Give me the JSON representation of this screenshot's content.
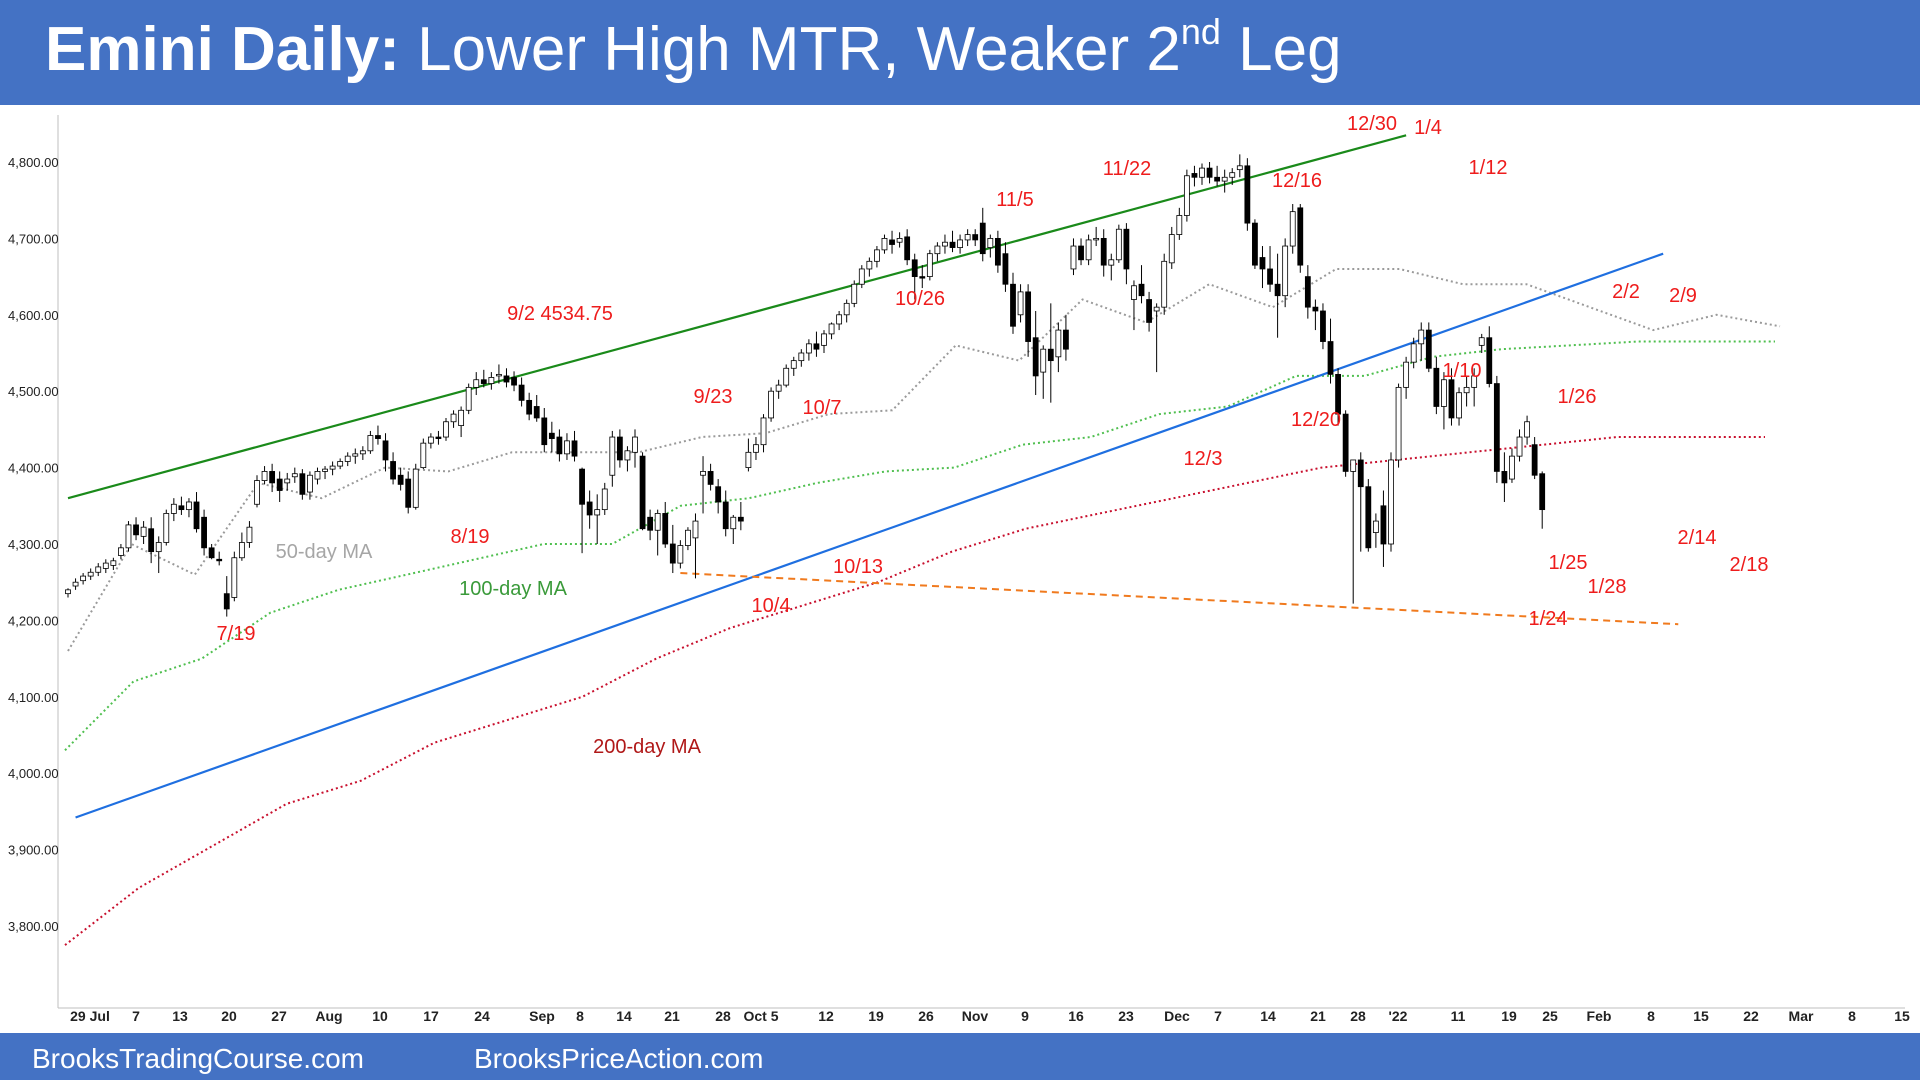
{
  "header": {
    "title_bold": "Emini Daily:",
    "title_main": " Lower High MTR, Weaker 2",
    "title_sup": "nd",
    "title_tail": " Leg"
  },
  "footer": {
    "left": "BrooksTradingCourse.com",
    "right": "BrooksPriceAction.com"
  },
  "colors": {
    "banner": "#4472c4",
    "upper_trendline": "#1a8a1a",
    "lower_trendline": "#1f6fe0",
    "support_line": "#f07a1e",
    "ma50": "#9a9a9a",
    "ma100": "#4fbf4f",
    "ma200": "#c8102e",
    "label_red": "#ee1c1c"
  },
  "chart_data": {
    "type": "candlestick",
    "ylim": [
      3750,
      4850
    ],
    "y_ticks": [
      "3,800.00",
      "3,900.00",
      "4,000.00",
      "4,100.00",
      "4,200.00",
      "4,300.00",
      "4,400.00",
      "4,500.00",
      "4,600.00",
      "4,700.00",
      "4,800.00"
    ],
    "x_ticks": [
      "29 Jul",
      "7",
      "13",
      "20",
      "27",
      "Aug",
      "10",
      "17",
      "24",
      "Sep",
      "8",
      "14",
      "21",
      "28",
      "Oct 5",
      "12",
      "19",
      "26",
      "Nov",
      "9",
      "16",
      "23",
      "Dec",
      "7",
      "14",
      "21",
      "28",
      "'22",
      "11",
      "19",
      "25",
      "Feb",
      "8",
      "15",
      "22",
      "Mar",
      "8",
      "15"
    ],
    "candles": [
      [
        4235,
        4242,
        4230,
        4240
      ],
      [
        4245,
        4255,
        4240,
        4250
      ],
      [
        4252,
        4262,
        4247,
        4258
      ],
      [
        4258,
        4268,
        4253,
        4263
      ],
      [
        4263,
        4275,
        4258,
        4270
      ],
      [
        4268,
        4280,
        4262,
        4275
      ],
      [
        4272,
        4282,
        4266,
        4278
      ],
      [
        4285,
        4300,
        4280,
        4295
      ],
      [
        4295,
        4330,
        4290,
        4325
      ],
      [
        4325,
        4335,
        4305,
        4312
      ],
      [
        4310,
        4330,
        4300,
        4322
      ],
      [
        4320,
        4335,
        4275,
        4290
      ],
      [
        4290,
        4310,
        4262,
        4302
      ],
      [
        4302,
        4345,
        4298,
        4340
      ],
      [
        4340,
        4360,
        4330,
        4352
      ],
      [
        4350,
        4362,
        4338,
        4345
      ],
      [
        4345,
        4360,
        4335,
        4355
      ],
      [
        4355,
        4368,
        4315,
        4320
      ],
      [
        4335,
        4345,
        4285,
        4295
      ],
      [
        4295,
        4300,
        4280,
        4282
      ],
      [
        4280,
        4290,
        4272,
        4278
      ],
      [
        4235,
        4258,
        4205,
        4215
      ],
      [
        4230,
        4290,
        4225,
        4282
      ],
      [
        4282,
        4315,
        4278,
        4302
      ],
      [
        4302,
        4330,
        4295,
        4322
      ],
      [
        4352,
        4390,
        4348,
        4383
      ],
      [
        4383,
        4402,
        4378,
        4395
      ],
      [
        4395,
        4405,
        4368,
        4380
      ],
      [
        4385,
        4395,
        4355,
        4370
      ],
      [
        4380,
        4393,
        4370,
        4385
      ],
      [
        4388,
        4400,
        4380,
        4392
      ],
      [
        4392,
        4398,
        4358,
        4365
      ],
      [
        4368,
        4395,
        4358,
        4390
      ],
      [
        4385,
        4400,
        4378,
        4395
      ],
      [
        4395,
        4402,
        4385,
        4398
      ],
      [
        4398,
        4408,
        4390,
        4402
      ],
      [
        4402,
        4412,
        4398,
        4408
      ],
      [
        4408,
        4420,
        4402,
        4415
      ],
      [
        4415,
        4425,
        4405,
        4418
      ],
      [
        4418,
        4428,
        4410,
        4422
      ],
      [
        4422,
        4448,
        4418,
        4442
      ],
      [
        4442,
        4455,
        4430,
        4438
      ],
      [
        4435,
        4445,
        4395,
        4410
      ],
      [
        4408,
        4420,
        4378,
        4385
      ],
      [
        4390,
        4400,
        4370,
        4378
      ],
      [
        4385,
        4395,
        4340,
        4348
      ],
      [
        4348,
        4405,
        4345,
        4398
      ],
      [
        4400,
        4438,
        4398,
        4432
      ],
      [
        4432,
        4445,
        4425,
        4440
      ],
      [
        4440,
        4448,
        4430,
        4438
      ],
      [
        4440,
        4465,
        4435,
        4460
      ],
      [
        4460,
        4475,
        4452,
        4470
      ],
      [
        4455,
        4480,
        4440,
        4475
      ],
      [
        4475,
        4510,
        4470,
        4505
      ],
      [
        4505,
        4525,
        4495,
        4515
      ],
      [
        4515,
        4528,
        4505,
        4510
      ],
      [
        4510,
        4525,
        4502,
        4518
      ],
      [
        4520,
        4535,
        4510,
        4522
      ],
      [
        4520,
        4530,
        4505,
        4512
      ],
      [
        4518,
        4526,
        4500,
        4508
      ],
      [
        4508,
        4518,
        4480,
        4488
      ],
      [
        4488,
        4498,
        4462,
        4470
      ],
      [
        4480,
        4495,
        4460,
        4465
      ],
      [
        4465,
        4478,
        4420,
        4430
      ],
      [
        4445,
        4460,
        4420,
        4438
      ],
      [
        4440,
        4450,
        4408,
        4418
      ],
      [
        4418,
        4445,
        4410,
        4435
      ],
      [
        4435,
        4448,
        4408,
        4415
      ],
      [
        4398,
        4400,
        4288,
        4352
      ],
      [
        4355,
        4370,
        4320,
        4338
      ],
      [
        4338,
        4365,
        4300,
        4345
      ],
      [
        4345,
        4380,
        4338,
        4372
      ],
      [
        4390,
        4448,
        4375,
        4440
      ],
      [
        4440,
        4450,
        4400,
        4410
      ],
      [
        4410,
        4428,
        4395,
        4422
      ],
      [
        4420,
        4450,
        4400,
        4440
      ],
      [
        4415,
        4420,
        4318,
        4320
      ],
      [
        4335,
        4345,
        4305,
        4318
      ],
      [
        4318,
        4345,
        4285,
        4340
      ],
      [
        4340,
        4355,
        4295,
        4300
      ],
      [
        4300,
        4325,
        4262,
        4275
      ],
      [
        4275,
        4305,
        4268,
        4298
      ],
      [
        4298,
        4322,
        4292,
        4318
      ],
      [
        4308,
        4340,
        4255,
        4330
      ],
      [
        4390,
        4415,
        4340,
        4395
      ],
      [
        4395,
        4405,
        4370,
        4378
      ],
      [
        4375,
        4385,
        4340,
        4355
      ],
      [
        4355,
        4370,
        4310,
        4320
      ],
      [
        4320,
        4338,
        4300,
        4335
      ],
      [
        4335,
        4355,
        4318,
        4330
      ],
      [
        4400,
        4438,
        4395,
        4420
      ],
      [
        4420,
        4440,
        4410,
        4430
      ],
      [
        4430,
        4470,
        4420,
        4465
      ],
      [
        4465,
        4505,
        4460,
        4500
      ],
      [
        4500,
        4515,
        4490,
        4508
      ],
      [
        4508,
        4535,
        4505,
        4530
      ],
      [
        4530,
        4545,
        4520,
        4540
      ],
      [
        4540,
        4555,
        4532,
        4550
      ],
      [
        4550,
        4568,
        4540,
        4562
      ],
      [
        4562,
        4578,
        4545,
        4555
      ],
      [
        4560,
        4580,
        4550,
        4575
      ],
      [
        4575,
        4590,
        4568,
        4588
      ],
      [
        4588,
        4605,
        4580,
        4600
      ],
      [
        4600,
        4620,
        4590,
        4615
      ],
      [
        4615,
        4645,
        4610,
        4640
      ],
      [
        4640,
        4665,
        4635,
        4660
      ],
      [
        4660,
        4675,
        4650,
        4670
      ],
      [
        4670,
        4690,
        4662,
        4685
      ],
      [
        4685,
        4705,
        4680,
        4700
      ],
      [
        4698,
        4710,
        4680,
        4692
      ],
      [
        4695,
        4708,
        4688,
        4700
      ],
      [
        4702,
        4712,
        4665,
        4672
      ],
      [
        4672,
        4680,
        4620,
        4650
      ],
      [
        4650,
        4665,
        4635,
        4648
      ],
      [
        4650,
        4685,
        4645,
        4680
      ],
      [
        4680,
        4695,
        4670,
        4690
      ],
      [
        4690,
        4705,
        4680,
        4695
      ],
      [
        4695,
        4710,
        4682,
        4688
      ],
      [
        4688,
        4705,
        4680,
        4698
      ],
      [
        4698,
        4712,
        4690,
        4705
      ],
      [
        4705,
        4712,
        4690,
        4698
      ],
      [
        4720,
        4740,
        4670,
        4680
      ],
      [
        4688,
        4705,
        4675,
        4700
      ],
      [
        4700,
        4710,
        4655,
        4665
      ],
      [
        4680,
        4695,
        4630,
        4640
      ],
      [
        4640,
        4655,
        4575,
        4585
      ],
      [
        4600,
        4640,
        4590,
        4630
      ],
      [
        4630,
        4640,
        4545,
        4565
      ],
      [
        4570,
        4605,
        4495,
        4520
      ],
      [
        4525,
        4560,
        4490,
        4555
      ],
      [
        4555,
        4615,
        4485,
        4540
      ],
      [
        4545,
        4590,
        4525,
        4580
      ],
      [
        4580,
        4600,
        4540,
        4555
      ],
      [
        4660,
        4700,
        4652,
        4690
      ],
      [
        4690,
        4700,
        4665,
        4672
      ],
      [
        4672,
        4705,
        4665,
        4698
      ],
      [
        4698,
        4715,
        4690,
        4700
      ],
      [
        4700,
        4712,
        4650,
        4665
      ],
      [
        4665,
        4680,
        4645,
        4672
      ],
      [
        4672,
        4718,
        4668,
        4712
      ],
      [
        4712,
        4720,
        4640,
        4660
      ],
      [
        4620,
        4645,
        4580,
        4638
      ],
      [
        4640,
        4665,
        4615,
        4625
      ],
      [
        4620,
        4630,
        4578,
        4590
      ],
      [
        4605,
        4615,
        4525,
        4610
      ],
      [
        4610,
        4680,
        4600,
        4670
      ],
      [
        4668,
        4715,
        4660,
        4705
      ],
      [
        4705,
        4740,
        4698,
        4730
      ],
      [
        4730,
        4790,
        4722,
        4782
      ],
      [
        4785,
        4795,
        4768,
        4780
      ],
      [
        4780,
        4798,
        4770,
        4792
      ],
      [
        4792,
        4800,
        4772,
        4780
      ],
      [
        4780,
        4795,
        4768,
        4775
      ],
      [
        4775,
        4790,
        4760,
        4780
      ],
      [
        4780,
        4792,
        4770,
        4786
      ],
      [
        4790,
        4810,
        4780,
        4795
      ],
      [
        4795,
        4805,
        4710,
        4720
      ],
      [
        4720,
        4725,
        4660,
        4665
      ],
      [
        4675,
        4690,
        4635,
        4660
      ],
      [
        4660,
        4690,
        4630,
        4640
      ],
      [
        4640,
        4680,
        4570,
        4625
      ],
      [
        4625,
        4700,
        4610,
        4690
      ],
      [
        4690,
        4745,
        4680,
        4735
      ],
      [
        4740,
        4745,
        4655,
        4665
      ],
      [
        4650,
        4665,
        4595,
        4610
      ],
      [
        4610,
        4620,
        4580,
        4605
      ],
      [
        4605,
        4615,
        4555,
        4565
      ],
      [
        4565,
        4595,
        4510,
        4522
      ],
      [
        4522,
        4530,
        4455,
        4470
      ],
      [
        4470,
        4475,
        4388,
        4395
      ],
      [
        4395,
        4402,
        4222,
        4410
      ],
      [
        4410,
        4420,
        4290,
        4375
      ],
      [
        4375,
        4385,
        4290,
        4295
      ],
      [
        4315,
        4340,
        4295,
        4330
      ],
      [
        4350,
        4370,
        4270,
        4300
      ],
      [
        4300,
        4420,
        4290,
        4410
      ],
      [
        4410,
        4510,
        4400,
        4505
      ],
      [
        4505,
        4545,
        4490,
        4538
      ],
      [
        4538,
        4570,
        4530,
        4562
      ],
      [
        4562,
        4590,
        4540,
        4580
      ],
      [
        4580,
        4590,
        4525,
        4530
      ],
      [
        4530,
        4545,
        4470,
        4480
      ],
      [
        4480,
        4525,
        4450,
        4515
      ],
      [
        4515,
        4530,
        4455,
        4465
      ],
      [
        4465,
        4505,
        4455,
        4498
      ],
      [
        4498,
        4520,
        4480,
        4505
      ],
      [
        4505,
        4530,
        4480,
        4520
      ],
      [
        4560,
        4575,
        4550,
        4570
      ],
      [
        4570,
        4585,
        4505,
        4510
      ],
      [
        4510,
        4520,
        4380,
        4395
      ],
      [
        4395,
        4420,
        4355,
        4380
      ],
      [
        4385,
        4425,
        4380,
        4415
      ],
      [
        4415,
        4450,
        4408,
        4440
      ],
      [
        4440,
        4468,
        4430,
        4460
      ],
      [
        4430,
        4440,
        4385,
        4390
      ],
      [
        4392,
        4395,
        4320,
        4345
      ]
    ],
    "moving_averages": [
      {
        "name": "50-day MA",
        "points": [
          [
            4160,
            4300
          ],
          [
            4260,
            4380
          ],
          [
            4360,
            4400
          ],
          [
            4395,
            4420
          ],
          [
            4420,
            4420
          ],
          [
            4440,
            4445
          ],
          [
            4470,
            4475
          ],
          [
            4560,
            4540
          ],
          [
            4620,
            4590
          ],
          [
            4640,
            4610
          ],
          [
            4660,
            4660
          ],
          [
            4640,
            4640
          ],
          [
            4610,
            4580
          ],
          [
            4600,
            4585
          ]
        ]
      },
      {
        "name": "100-day MA",
        "points": [
          [
            4030,
            4120
          ],
          [
            4150,
            4210
          ],
          [
            4240,
            4260
          ],
          [
            4280,
            4300
          ],
          [
            4300,
            4350
          ],
          [
            4360,
            4380
          ],
          [
            4395,
            4400
          ],
          [
            4430,
            4440
          ],
          [
            4470,
            4480
          ],
          [
            4520,
            4520
          ],
          [
            4545,
            4555
          ],
          [
            4560,
            4565
          ],
          [
            4565,
            4565
          ]
        ]
      },
      {
        "name": "200-day MA",
        "points": [
          [
            3775,
            3850
          ],
          [
            3905,
            3960
          ],
          [
            3990,
            4040
          ],
          [
            4070,
            4100
          ],
          [
            4150,
            4190
          ],
          [
            4220,
            4250
          ],
          [
            4290,
            4320
          ],
          [
            4340,
            4360
          ],
          [
            4380,
            4400
          ],
          [
            4410,
            4420
          ],
          [
            4430,
            4440
          ],
          [
            4440,
            4440
          ]
        ]
      }
    ],
    "trendlines": [
      {
        "name": "upper",
        "from": [
          0,
          4360
        ],
        "to": [
          177,
          4835
        ]
      },
      {
        "name": "lower",
        "from": [
          1,
          3942
        ],
        "to": [
          211,
          4680
        ]
      },
      {
        "name": "support",
        "from": [
          81,
          4262
        ],
        "to": [
          213,
          4195
        ]
      }
    ],
    "annotations": [
      "7/19",
      "8/19",
      "9/2 4534.75",
      "9/23",
      "10/4",
      "10/7",
      "10/13",
      "10/26",
      "11/5",
      "11/22",
      "12/3",
      "12/16",
      "12/20",
      "12/30",
      "1/4",
      "1/10",
      "1/12",
      "1/24",
      "1/25",
      "1/26",
      "1/28",
      "2/2",
      "2/9",
      "2/14",
      "2/18",
      "50-day MA",
      "100-day MA",
      "200-day MA"
    ]
  }
}
